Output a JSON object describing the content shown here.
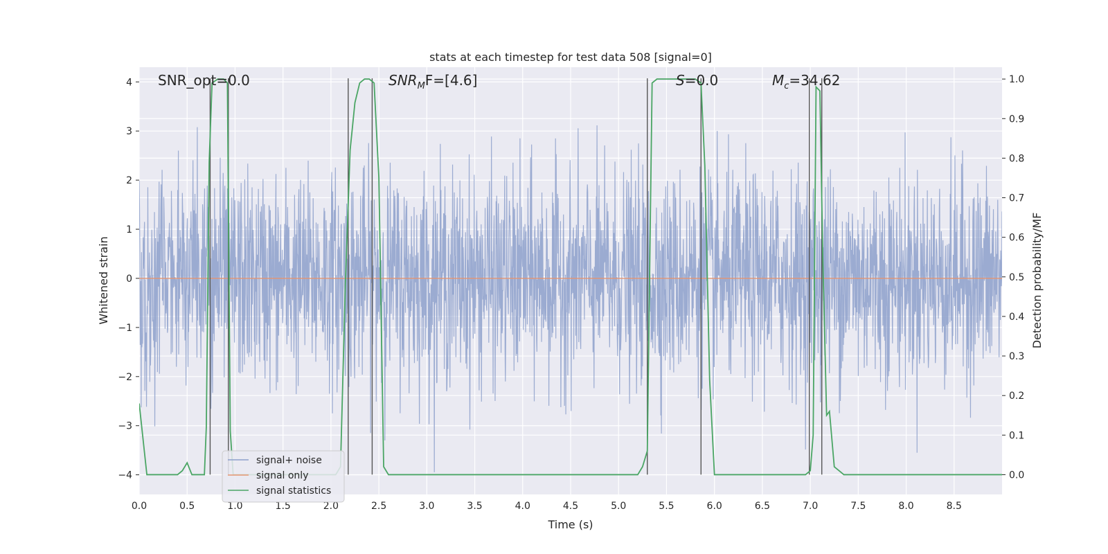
{
  "chart_data": {
    "type": "line",
    "title": "stats at each timestep for test data 508 [signal=0]",
    "xlabel": "Time (s)",
    "ylabel": "Whitened strain",
    "y2label": "Detection probability/MF",
    "xlim": [
      0.0,
      9.0
    ],
    "ylim": [
      -4.4,
      4.3
    ],
    "y2lim": [
      -0.05,
      1.03
    ],
    "xticks": [
      "0.0",
      "0.5",
      "1.0",
      "1.5",
      "2.0",
      "2.5",
      "3.0",
      "3.5",
      "4.0",
      "4.5",
      "5.0",
      "5.5",
      "6.0",
      "6.5",
      "7.0",
      "7.5",
      "8.0",
      "8.5"
    ],
    "yticks": [
      "4",
      "3",
      "2",
      "1",
      "0",
      "−1",
      "−2",
      "−3",
      "−4"
    ],
    "y2ticks": [
      "1.0",
      "0.9",
      "0.8",
      "0.7",
      "0.6",
      "0.5",
      "0.4",
      "0.3",
      "0.2",
      "0.1",
      "0.0"
    ],
    "grid": true,
    "legend_position": "lower-left",
    "annotations": {
      "snr_opt": "SNR_opt=0.0",
      "snr_mf_name": "SNR",
      "snr_mf_sub": "M",
      "snr_mf_rest": "F=[4.6]",
      "s_name": "S",
      "s_rest": "=0.0",
      "mc_name": "M",
      "mc_sub": "c",
      "mc_rest": "=34.62"
    },
    "series": [
      {
        "name": "signal+ noise",
        "color": "#8da0cb",
        "description_values": "whitened strain noise, approx. standard normal, range about -4 to 4"
      },
      {
        "name": "signal only",
        "color": "#e5956f",
        "values_constant": 0.0
      },
      {
        "name": "signal statistics",
        "color": "#4aa564",
        "axis": "right",
        "x": [
          0.0,
          0.04,
          0.08,
          0.15,
          0.3,
          0.4,
          0.45,
          0.5,
          0.55,
          0.6,
          0.68,
          0.7,
          0.73,
          0.76,
          0.82,
          0.88,
          0.92,
          0.95,
          0.98,
          1.02,
          1.05,
          1.1,
          2.05,
          2.1,
          2.15,
          2.2,
          2.25,
          2.3,
          2.35,
          2.4,
          2.45,
          2.5,
          2.55,
          2.6,
          3.0,
          4.0,
          4.15,
          4.2,
          4.3,
          5.2,
          5.25,
          5.3,
          5.35,
          5.4,
          5.5,
          5.6,
          5.7,
          5.8,
          5.86,
          5.9,
          5.95,
          6.0,
          6.1,
          6.5,
          6.95,
          7.0,
          7.03,
          7.06,
          7.1,
          7.13,
          7.17,
          7.2,
          7.25,
          7.3,
          7.35,
          7.4,
          8.0,
          9.0
        ],
        "y": [
          0.18,
          0.09,
          0.0,
          0.0,
          0.0,
          0.0,
          0.01,
          0.03,
          0.0,
          0.0,
          0.0,
          0.12,
          0.79,
          0.99,
          1.0,
          1.0,
          0.99,
          0.11,
          0.0,
          0.0,
          0.0,
          0.0,
          0.0,
          0.02,
          0.48,
          0.82,
          0.94,
          0.99,
          1.0,
          1.0,
          0.99,
          0.75,
          0.02,
          0.0,
          0.0,
          0.0,
          0.0,
          0.0,
          0.0,
          0.0,
          0.02,
          0.06,
          0.99,
          1.0,
          1.0,
          1.0,
          1.0,
          1.0,
          0.99,
          0.78,
          0.24,
          0.0,
          0.0,
          0.0,
          0.0,
          0.01,
          0.1,
          0.98,
          0.97,
          0.55,
          0.15,
          0.16,
          0.02,
          0.01,
          0.0,
          0.0,
          0.0,
          0.0
        ]
      }
    ],
    "vlines_x": [
      0.74,
      0.93,
      2.18,
      2.43,
      5.3,
      5.86,
      6.99,
      7.12
    ]
  }
}
